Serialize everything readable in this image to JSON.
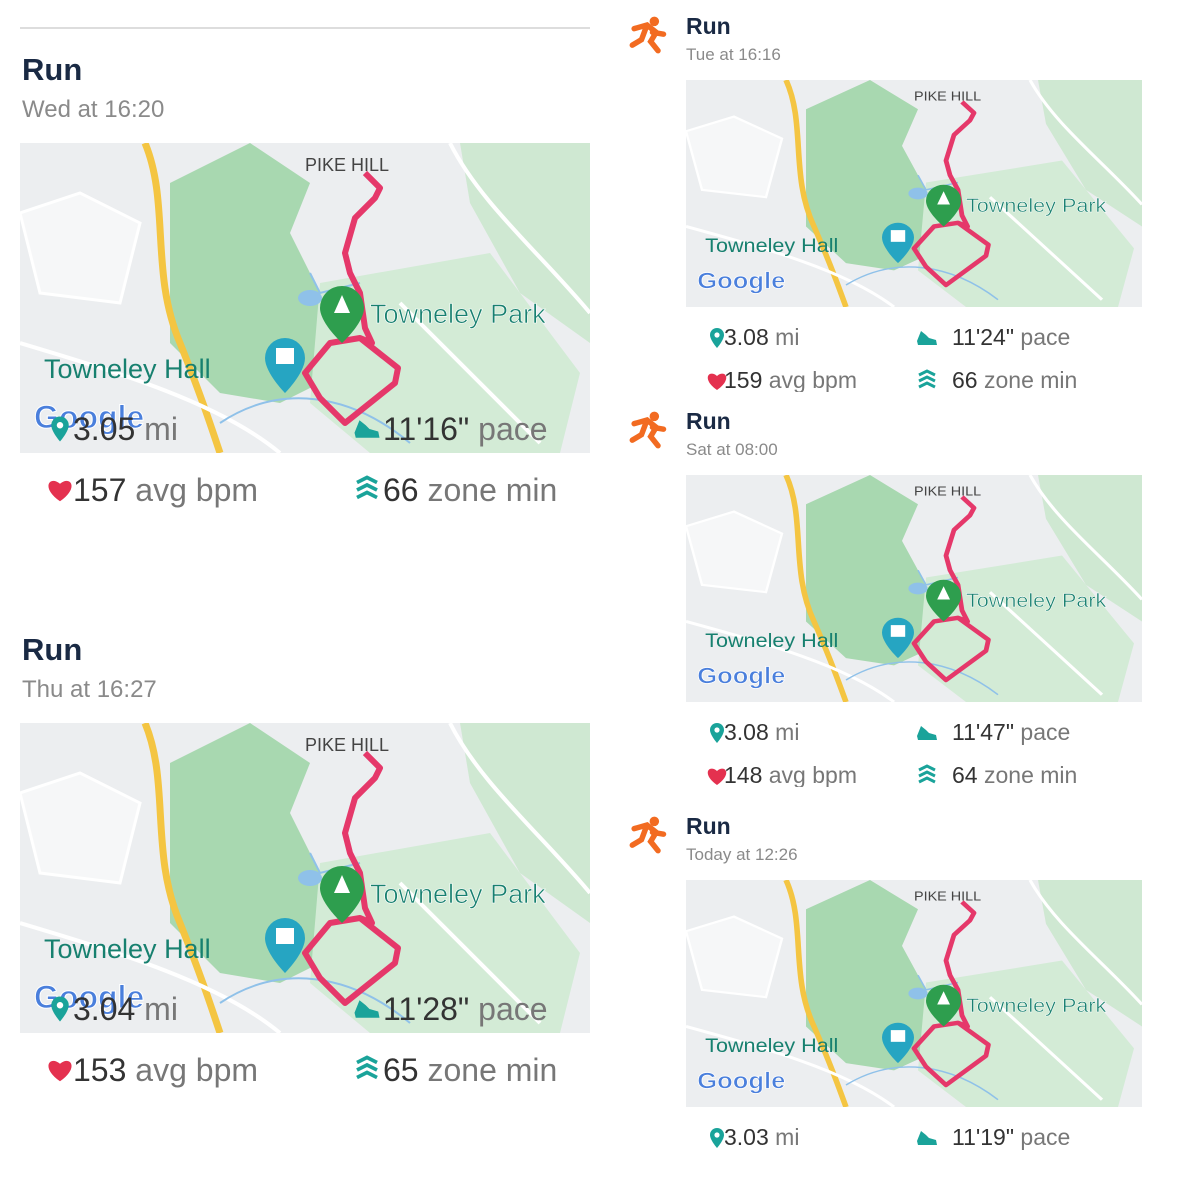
{
  "cards": [
    {
      "title": "Run",
      "time": "Wed at 16:20",
      "map": {
        "place": "PIKE HILL",
        "park": "Towneley Park",
        "hall": "Towneley Hall",
        "brand": "Google"
      },
      "stats": [
        {
          "value": "3.05",
          "unit": "mi"
        },
        {
          "value": "11'16\"",
          "unit": "pace"
        },
        {
          "value": "157",
          "unit": "avg bpm"
        },
        {
          "value": "66",
          "unit": "zone min"
        }
      ]
    },
    {
      "title": "Run",
      "time": "Thu at 16:27",
      "map": {
        "place": "PIKE HILL",
        "park": "Towneley Park",
        "hall": "Towneley Hall",
        "brand": "Google"
      },
      "stats": [
        {
          "value": "3.04",
          "unit": "mi"
        },
        {
          "value": "11'28\"",
          "unit": "pace"
        },
        {
          "value": "153",
          "unit": "avg bpm"
        },
        {
          "value": "65",
          "unit": "zone min"
        }
      ]
    },
    {
      "title": "Run",
      "time": "Tue at 16:16",
      "map": {
        "place": "PIKE HILL",
        "park": "Towneley Park",
        "hall": "Towneley Hall",
        "brand": "Google"
      },
      "stats": [
        {
          "value": "3.08",
          "unit": "mi"
        },
        {
          "value": "11'24\"",
          "unit": "pace"
        },
        {
          "value": "159",
          "unit": "avg bpm"
        },
        {
          "value": "66",
          "unit": "zone min"
        }
      ]
    },
    {
      "title": "Run",
      "time": "Sat at 08:00",
      "map": {
        "place": "PIKE HILL",
        "park": "Towneley Park",
        "hall": "Towneley Hall",
        "brand": "Google"
      },
      "stats": [
        {
          "value": "3.08",
          "unit": "mi"
        },
        {
          "value": "11'47\"",
          "unit": "pace"
        },
        {
          "value": "148",
          "unit": "avg bpm"
        },
        {
          "value": "64",
          "unit": "zone min"
        }
      ]
    },
    {
      "title": "Run",
      "time": "Today at 12:26",
      "map": {
        "place": "PIKE HILL",
        "park": "Towneley Park",
        "hall": "Towneley Hall",
        "brand": "Google"
      },
      "stats": [
        {
          "value": "3.03",
          "unit": "mi"
        },
        {
          "value": "11'19\"",
          "unit": "pace"
        }
      ]
    }
  ]
}
